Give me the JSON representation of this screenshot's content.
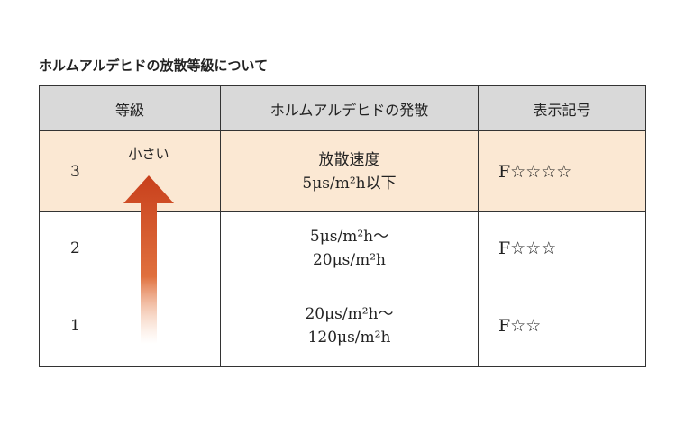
{
  "title": "ホルムアルデヒドの放散等級について",
  "table": {
    "header": [
      "等級",
      "ホルムアルデヒドの発散",
      "表示記号"
    ],
    "rows": [
      [
        "3",
        [
          "放散速度",
          "5μs/m²h以下"
        ],
        "F☆☆☆☆"
      ],
      [
        "2",
        [
          "5μs/m²h〜",
          "20μs/m²h"
        ],
        "F☆☆☆"
      ],
      [
        "1",
        [
          "20μs/m²h〜",
          "120μs/m²h"
        ],
        "F☆☆"
      ]
    ]
  },
  "arrow": {
    "label": "小さい"
  }
}
